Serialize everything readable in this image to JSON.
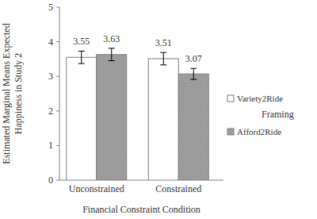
{
  "chart_data": {
    "type": "bar",
    "y_label": "Estimated Marginal Means Expected Happiness in Study 2",
    "x_label": "Financial Constraint Condition",
    "legend_title": "Framing",
    "categories": [
      "Unconstrained",
      "Constrained"
    ],
    "series": [
      {
        "name": "Variety2Ride",
        "color": "#ffffff",
        "values": [
          3.55,
          3.51
        ],
        "errors": [
          0.18,
          0.18
        ]
      },
      {
        "name": "Afford2Ride",
        "color": "#a6a6a6",
        "values": [
          3.63,
          3.07
        ],
        "errors": [
          0.18,
          0.16
        ]
      }
    ],
    "ylim": [
      0,
      5
    ],
    "yticks": [
      0,
      1,
      2,
      3,
      4,
      5
    ],
    "grid": false,
    "data_labels": true,
    "legend": "right"
  }
}
